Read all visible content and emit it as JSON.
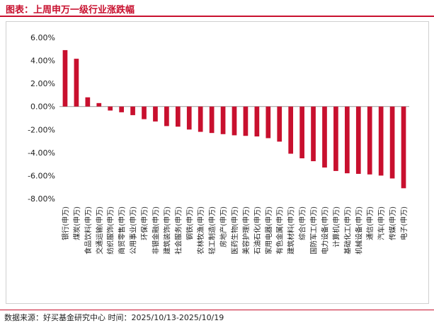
{
  "header": {
    "title": "图表：上周申万一级行业涨跌幅"
  },
  "footer": {
    "source": "数据来源：好买基金研究中心 时间：2025/10/13-2025/10/19"
  },
  "colors": {
    "accent": "#c8102e",
    "bar": "#c8102e",
    "axis": "#999999"
  },
  "chart_data": {
    "type": "bar",
    "title": "",
    "xlabel": "",
    "ylabel": "",
    "ylim": [
      -8,
      6
    ],
    "yticks": [
      6,
      4,
      2,
      0,
      -2,
      -4,
      -6,
      -8
    ],
    "ytick_labels": [
      "6.00%",
      "4.00%",
      "2.00%",
      "0.00%",
      "-2.00%",
      "-4.00%",
      "-6.00%",
      "-8.00%"
    ],
    "grid": false,
    "categories": [
      "银行(申万)",
      "煤炭(申万)",
      "食品饮料(申万)",
      "交通运输(申万)",
      "纺织服饰(申万)",
      "商贸零售(申万)",
      "公用事业(申万)",
      "环保(申万)",
      "非银金融(申万)",
      "建筑装饰(申万)",
      "社会服务(申万)",
      "钢铁(申万)",
      "农林牧渔(申万)",
      "轻工制造(申万)",
      "房地产(申万)",
      "医药生物(申万)",
      "美容护理(申万)",
      "石油石化(申万)",
      "家用电器(申万)",
      "有色金属(申万)",
      "建筑材料(申万)",
      "综合(申万)",
      "国防军工(申万)",
      "电力设备(申万)",
      "计算机(申万)",
      "基础化工(申万)",
      "机械设备(申万)",
      "通信(申万)",
      "汽车(申万)",
      "传媒(申万)",
      "电子(申万)"
    ],
    "values": [
      4.9,
      4.15,
      0.8,
      0.3,
      -0.35,
      -0.5,
      -0.75,
      -1.1,
      -1.3,
      -1.7,
      -1.75,
      -2.0,
      -2.2,
      -2.3,
      -2.4,
      -2.5,
      -2.55,
      -2.6,
      -2.75,
      -3.05,
      -4.1,
      -4.5,
      -4.75,
      -5.3,
      -5.6,
      -5.8,
      -5.85,
      -5.9,
      -6.0,
      -6.25,
      -7.1
    ]
  }
}
